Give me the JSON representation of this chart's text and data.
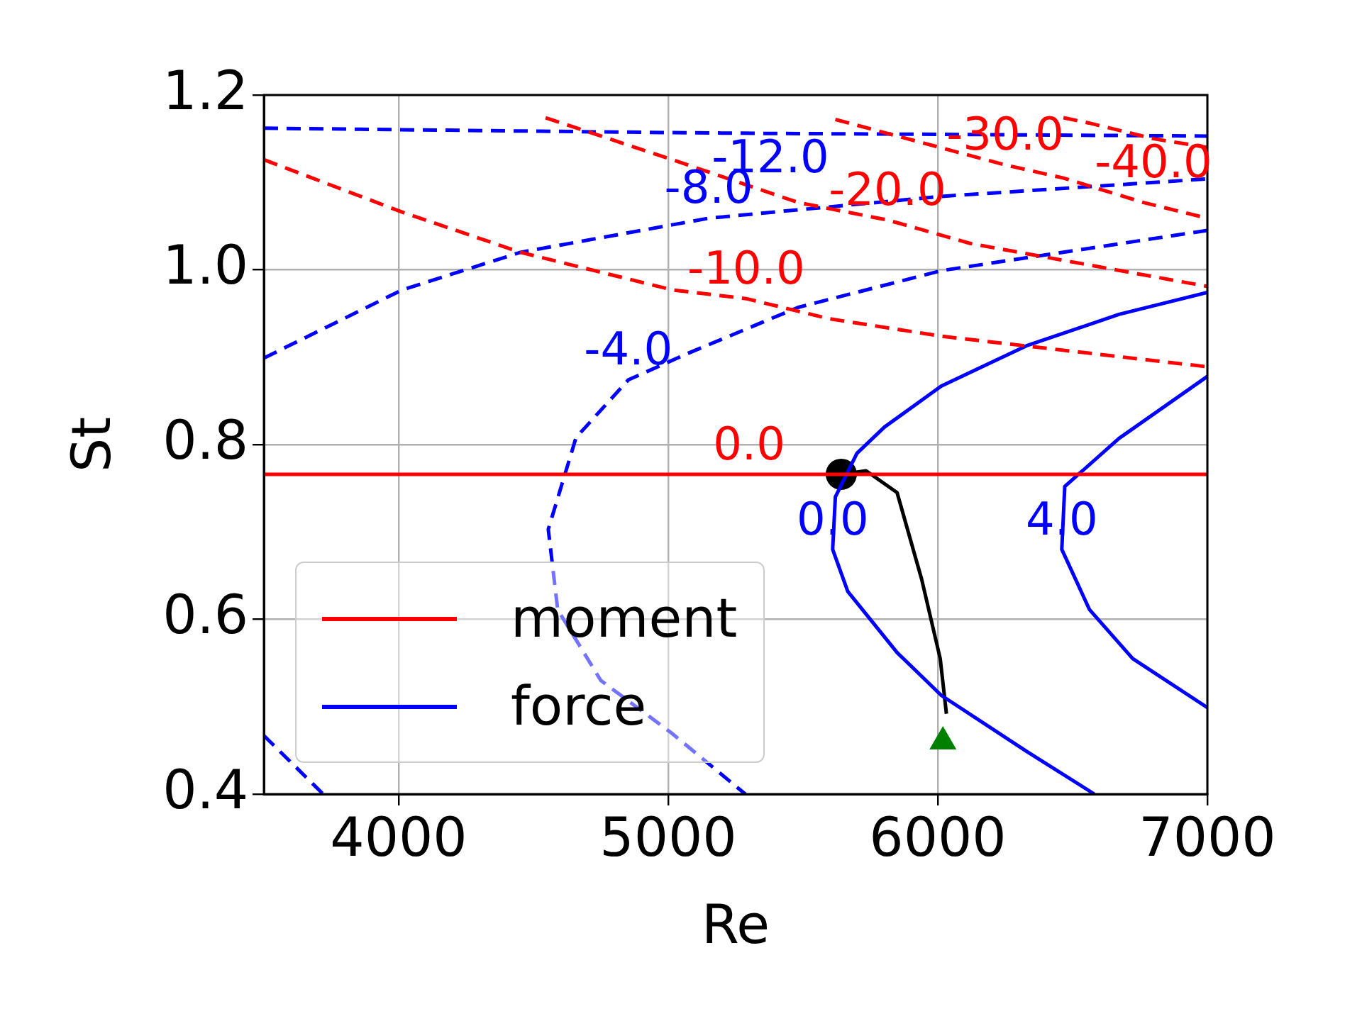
{
  "chart_data": {
    "type": "line",
    "xlabel": "Re",
    "ylabel": "St",
    "xlim": [
      3500,
      7000
    ],
    "ylim": [
      0.4,
      1.2
    ],
    "xticks": [
      4000,
      5000,
      6000,
      7000
    ],
    "yticks": [
      {
        "value": 0.4,
        "label": "0.4"
      },
      {
        "value": 0.6,
        "label": "0.6"
      },
      {
        "value": 0.8,
        "label": "0.8"
      },
      {
        "value": 1.0,
        "label": "1.0"
      },
      {
        "value": 1.2,
        "label": "1.2"
      }
    ],
    "grid": true,
    "legend": "bottom left",
    "marker": "none",
    "line_style": "solid",
    "series": [
      {
        "name": "moment",
        "color": "#ff0000",
        "x": [
          3500,
          5300,
          7000
        ],
        "values": [
          0.766,
          0.766,
          0.766
        ]
      },
      {
        "color": "#ff0000",
        "line_style": "dashed",
        "x": [
          3500,
          4013,
          4452,
          5015,
          5289,
          5597,
          6013,
          7000
        ],
        "values": [
          1.126,
          1.066,
          1.02,
          0.977,
          0.967,
          0.944,
          0.924,
          0.889
        ]
      },
      {
        "color": "#ff0000",
        "line_style": "dashed",
        "x": [
          4545,
          5015,
          5482,
          5813,
          6122,
          7000
        ],
        "values": [
          1.174,
          1.126,
          1.077,
          1.057,
          1.03,
          0.981
        ]
      },
      {
        "color": "#ff0000",
        "line_style": "dashed",
        "x": [
          5620,
          6250,
          6466,
          6763,
          7000
        ],
        "values": [
          1.172,
          1.12,
          1.105,
          1.077,
          1.059
        ]
      },
      {
        "color": "#ff0000",
        "line_style": "dashed",
        "x": [
          6466,
          6560,
          6800,
          7000
        ],
        "values": [
          1.174,
          1.168,
          1.15,
          1.14
        ]
      },
      {
        "name": "force",
        "color": "#0000ff",
        "x": [
          7000,
          6672,
          6329,
          6013,
          5802,
          5700,
          5620,
          5610,
          5666,
          5849,
          6013,
          6329,
          6581
        ],
        "values": [
          0.974,
          0.949,
          0.913,
          0.867,
          0.82,
          0.79,
          0.74,
          0.68,
          0.632,
          0.562,
          0.513,
          0.449,
          0.4
        ]
      },
      {
        "color": "#0000ff",
        "x": [
          7000,
          6672,
          6471,
          6460,
          6563,
          6723,
          7000
        ],
        "values": [
          0.878,
          0.807,
          0.752,
          0.68,
          0.611,
          0.555,
          0.499
        ]
      },
      {
        "color": "#0000ff",
        "line_style": "dashed",
        "x": [
          3500,
          5000,
          5379,
          6000,
          7000
        ],
        "values": [
          1.162,
          1.157,
          1.156,
          1.155,
          1.153
        ]
      },
      {
        "color": "#0000ff",
        "line_style": "dashed",
        "x": [
          3500,
          4013,
          4452,
          5150,
          6013,
          7000
        ],
        "values": [
          0.899,
          0.977,
          1.02,
          1.059,
          1.084,
          1.104
        ]
      },
      {
        "color": "#0000ff",
        "line_style": "dashed",
        "x": [
          7000,
          6013,
          5482,
          5070,
          4852,
          4658,
          4555,
          4590,
          4750,
          5012,
          5286
        ],
        "values": [
          1.045,
          0.999,
          0.957,
          0.904,
          0.874,
          0.808,
          0.703,
          0.611,
          0.53,
          0.47,
          0.4
        ]
      },
      {
        "color": "#0000ff",
        "line_style": "dashed",
        "x": [
          3500,
          3720
        ],
        "values": [
          0.467,
          0.4
        ]
      },
      {
        "color": "#000000",
        "x": [
          5642,
          5734,
          5849,
          5940,
          6009,
          6032
        ],
        "values": [
          0.766,
          0.77,
          0.745,
          0.646,
          0.555,
          0.492
        ]
      },
      {
        "type": "scatter",
        "color": "#000000",
        "marker": "circle",
        "x": [
          5642
        ],
        "values": [
          0.766
        ]
      },
      {
        "type": "scatter",
        "color": "#008000",
        "marker": "triangle",
        "x": [
          6019
        ],
        "values": [
          0.46
        ]
      }
    ],
    "annotations": [
      {
        "text": "0.0",
        "x": 5300,
        "y": 0.766
      },
      {
        "text": "-10.0",
        "x": 5289,
        "y": 0.967
      },
      {
        "text": "-20.0",
        "x": 5813,
        "y": 1.057
      },
      {
        "text": "-30.0",
        "x": 6250,
        "y": 1.12
      },
      {
        "text": "-40.0",
        "x": 6800,
        "y": 1.15
      },
      {
        "text": "-12.0",
        "x": 5379,
        "y": 1.156
      },
      {
        "text": "-8.0",
        "x": 5150,
        "y": 1.059
      },
      {
        "text": "-4.0",
        "x": 4852,
        "y": 0.874
      },
      {
        "text": "0.0",
        "x": 5610,
        "y": 0.68
      },
      {
        "text": "4.0",
        "x": 6460,
        "y": 0.68
      }
    ]
  }
}
